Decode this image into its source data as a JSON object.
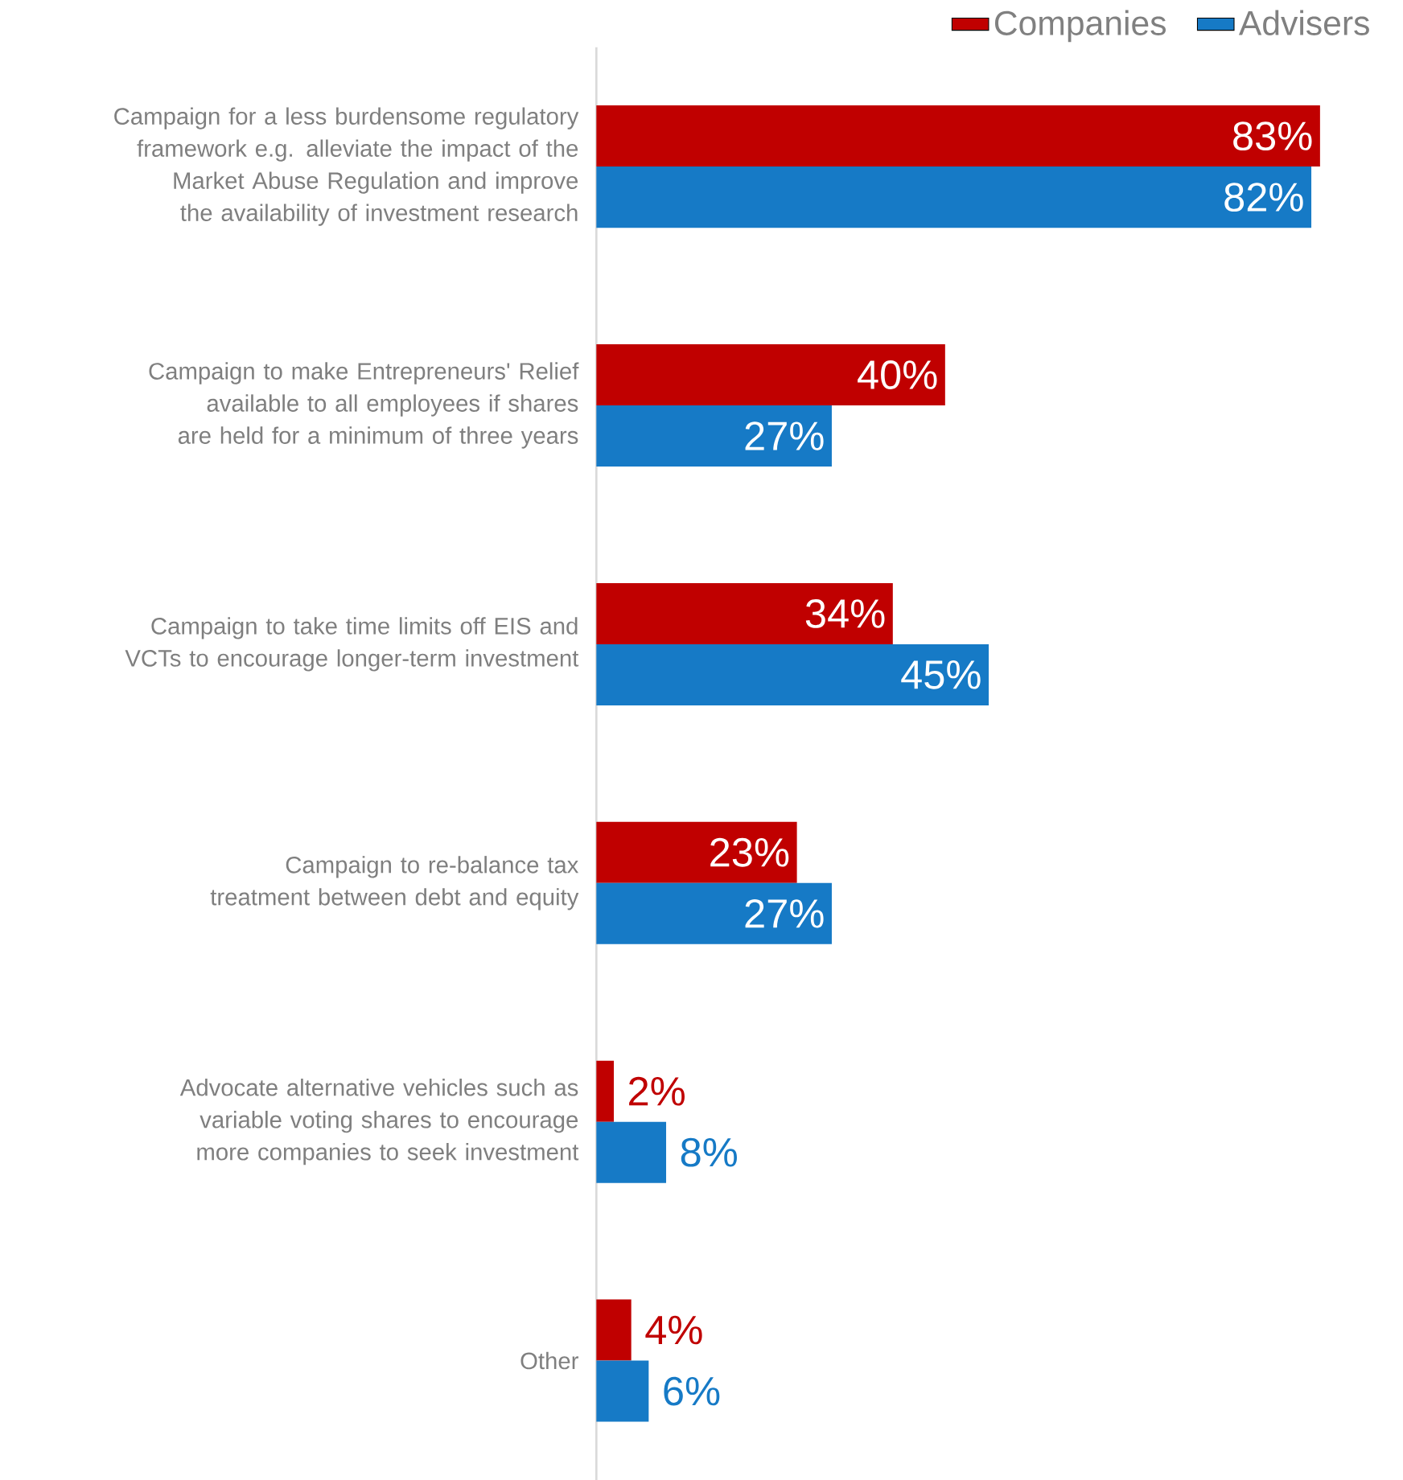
{
  "chart_data": {
    "type": "bar",
    "orientation": "horizontal",
    "legend": "top right",
    "categories": [
      "Campaign for a less burdensome regulatory framework e.g. alleviate the impact of the Market Abuse Regulation and improve the availability of investment research",
      "Campaign to make Entrepreneurs' Relief available to all employees if shares are held for a minimum of three years",
      "Campaign to take time limits off EIS and VCTs to encourage longer-term investment",
      "Campaign to re-balance tax treatment between debt and equity",
      "Advocate alternative vehicles such as variable voting shares to encourage more companies to seek investment",
      "Other"
    ],
    "series": [
      {
        "name": "Companies",
        "color": "#c00000",
        "values": [
          83,
          40,
          34,
          23,
          2,
          4
        ],
        "value_labels": [
          "83%",
          "40%",
          "34%",
          "23%",
          "2%",
          "4%"
        ]
      },
      {
        "name": "Advisers",
        "color": "#167ac6",
        "values": [
          82,
          27,
          45,
          27,
          8,
          6
        ],
        "value_labels": [
          "82%",
          "27%",
          "45%",
          "27%",
          "8%",
          "6%"
        ]
      }
    ]
  }
}
